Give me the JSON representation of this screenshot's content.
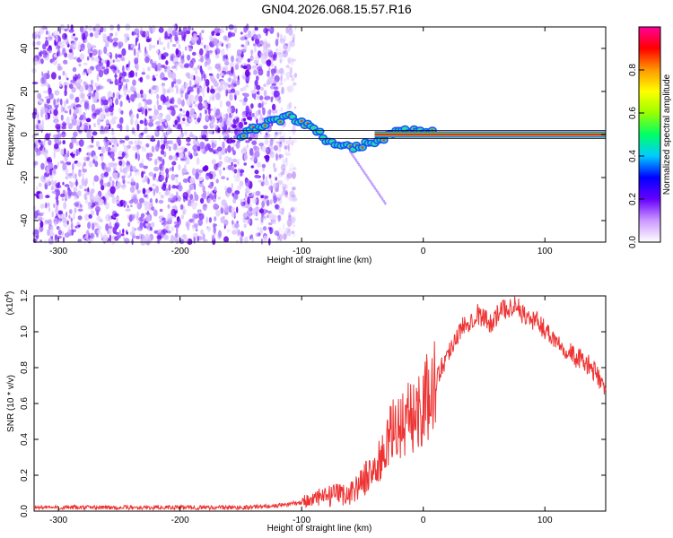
{
  "title": "GN04.2026.068.15.57.R16",
  "chart_data": [
    {
      "type": "heatmap",
      "name": "spectrogram",
      "xlabel": "Height of straight line (km)",
      "ylabel": "Frequency (Hz)",
      "xlim": [
        -320,
        150
      ],
      "ylim": [
        -50,
        50
      ],
      "xticks": [
        -300,
        -200,
        -100,
        0,
        100
      ],
      "yticks": [
        -40,
        -20,
        0,
        20,
        40
      ],
      "noise_region_x": [
        -320,
        -105
      ],
      "signal_track": [
        {
          "x": -150,
          "y": 0
        },
        {
          "x": -140,
          "y": 3
        },
        {
          "x": -130,
          "y": 5
        },
        {
          "x": -120,
          "y": 7
        },
        {
          "x": -110,
          "y": 8
        },
        {
          "x": -100,
          "y": 6
        },
        {
          "x": -90,
          "y": 2
        },
        {
          "x": -80,
          "y": -2
        },
        {
          "x": -70,
          "y": -4
        },
        {
          "x": -60,
          "y": -6
        },
        {
          "x": -50,
          "y": -5
        },
        {
          "x": -40,
          "y": -3
        },
        {
          "x": -30,
          "y": -1
        },
        {
          "x": -20,
          "y": 1
        },
        {
          "x": -10,
          "y": 2
        },
        {
          "x": 0,
          "y": 2
        },
        {
          "x": 10,
          "y": 1
        }
      ],
      "carrier_line": {
        "x_start": -40,
        "x_end": 150,
        "y": 0
      },
      "colorbar": {
        "label": "Normalized spectral amplitude",
        "range": [
          0,
          1
        ],
        "ticks": [
          "0.0",
          "0.2",
          "0.4",
          "0.6",
          "0.8"
        ],
        "colors": [
          "#ffffff",
          "#cc99ff",
          "#6600ff",
          "#0000ff",
          "#00ccff",
          "#00ff66",
          "#99ff00",
          "#ffff00",
          "#ff9900",
          "#ff0000",
          "#ff0099"
        ]
      }
    },
    {
      "type": "line",
      "name": "snr",
      "xlabel": "Height of straight line (km)",
      "ylabel": "SNR (10 * v/v)",
      "y_multiplier_label": "(x10",
      "y_multiplier_exp": "4",
      "y_multiplier_close": ")",
      "xlim": [
        -320,
        150
      ],
      "ylim": [
        0,
        1.2
      ],
      "xticks": [
        -300,
        -200,
        -100,
        0,
        100
      ],
      "yticks": [
        "0.0",
        "0.2",
        "0.4",
        "0.6",
        "0.8",
        "1.0",
        "1.2"
      ],
      "color": "#ee3333",
      "series": [
        {
          "x": -320,
          "y": 0.02
        },
        {
          "x": -250,
          "y": 0.02
        },
        {
          "x": -200,
          "y": 0.02
        },
        {
          "x": -150,
          "y": 0.02
        },
        {
          "x": -120,
          "y": 0.03
        },
        {
          "x": -100,
          "y": 0.05
        },
        {
          "x": -80,
          "y": 0.08
        },
        {
          "x": -60,
          "y": 0.1
        },
        {
          "x": -45,
          "y": 0.2
        },
        {
          "x": -35,
          "y": 0.28
        },
        {
          "x": -25,
          "y": 0.45
        },
        {
          "x": -15,
          "y": 0.5
        },
        {
          "x": -5,
          "y": 0.55
        },
        {
          "x": 5,
          "y": 0.65
        },
        {
          "x": 15,
          "y": 0.8
        },
        {
          "x": 25,
          "y": 0.95
        },
        {
          "x": 35,
          "y": 1.05
        },
        {
          "x": 45,
          "y": 1.1
        },
        {
          "x": 55,
          "y": 1.05
        },
        {
          "x": 65,
          "y": 1.12
        },
        {
          "x": 75,
          "y": 1.15
        },
        {
          "x": 85,
          "y": 1.08
        },
        {
          "x": 95,
          "y": 1.05
        },
        {
          "x": 105,
          "y": 0.98
        },
        {
          "x": 115,
          "y": 0.92
        },
        {
          "x": 125,
          "y": 0.86
        },
        {
          "x": 135,
          "y": 0.82
        },
        {
          "x": 145,
          "y": 0.74
        },
        {
          "x": 150,
          "y": 0.66
        }
      ]
    }
  ]
}
